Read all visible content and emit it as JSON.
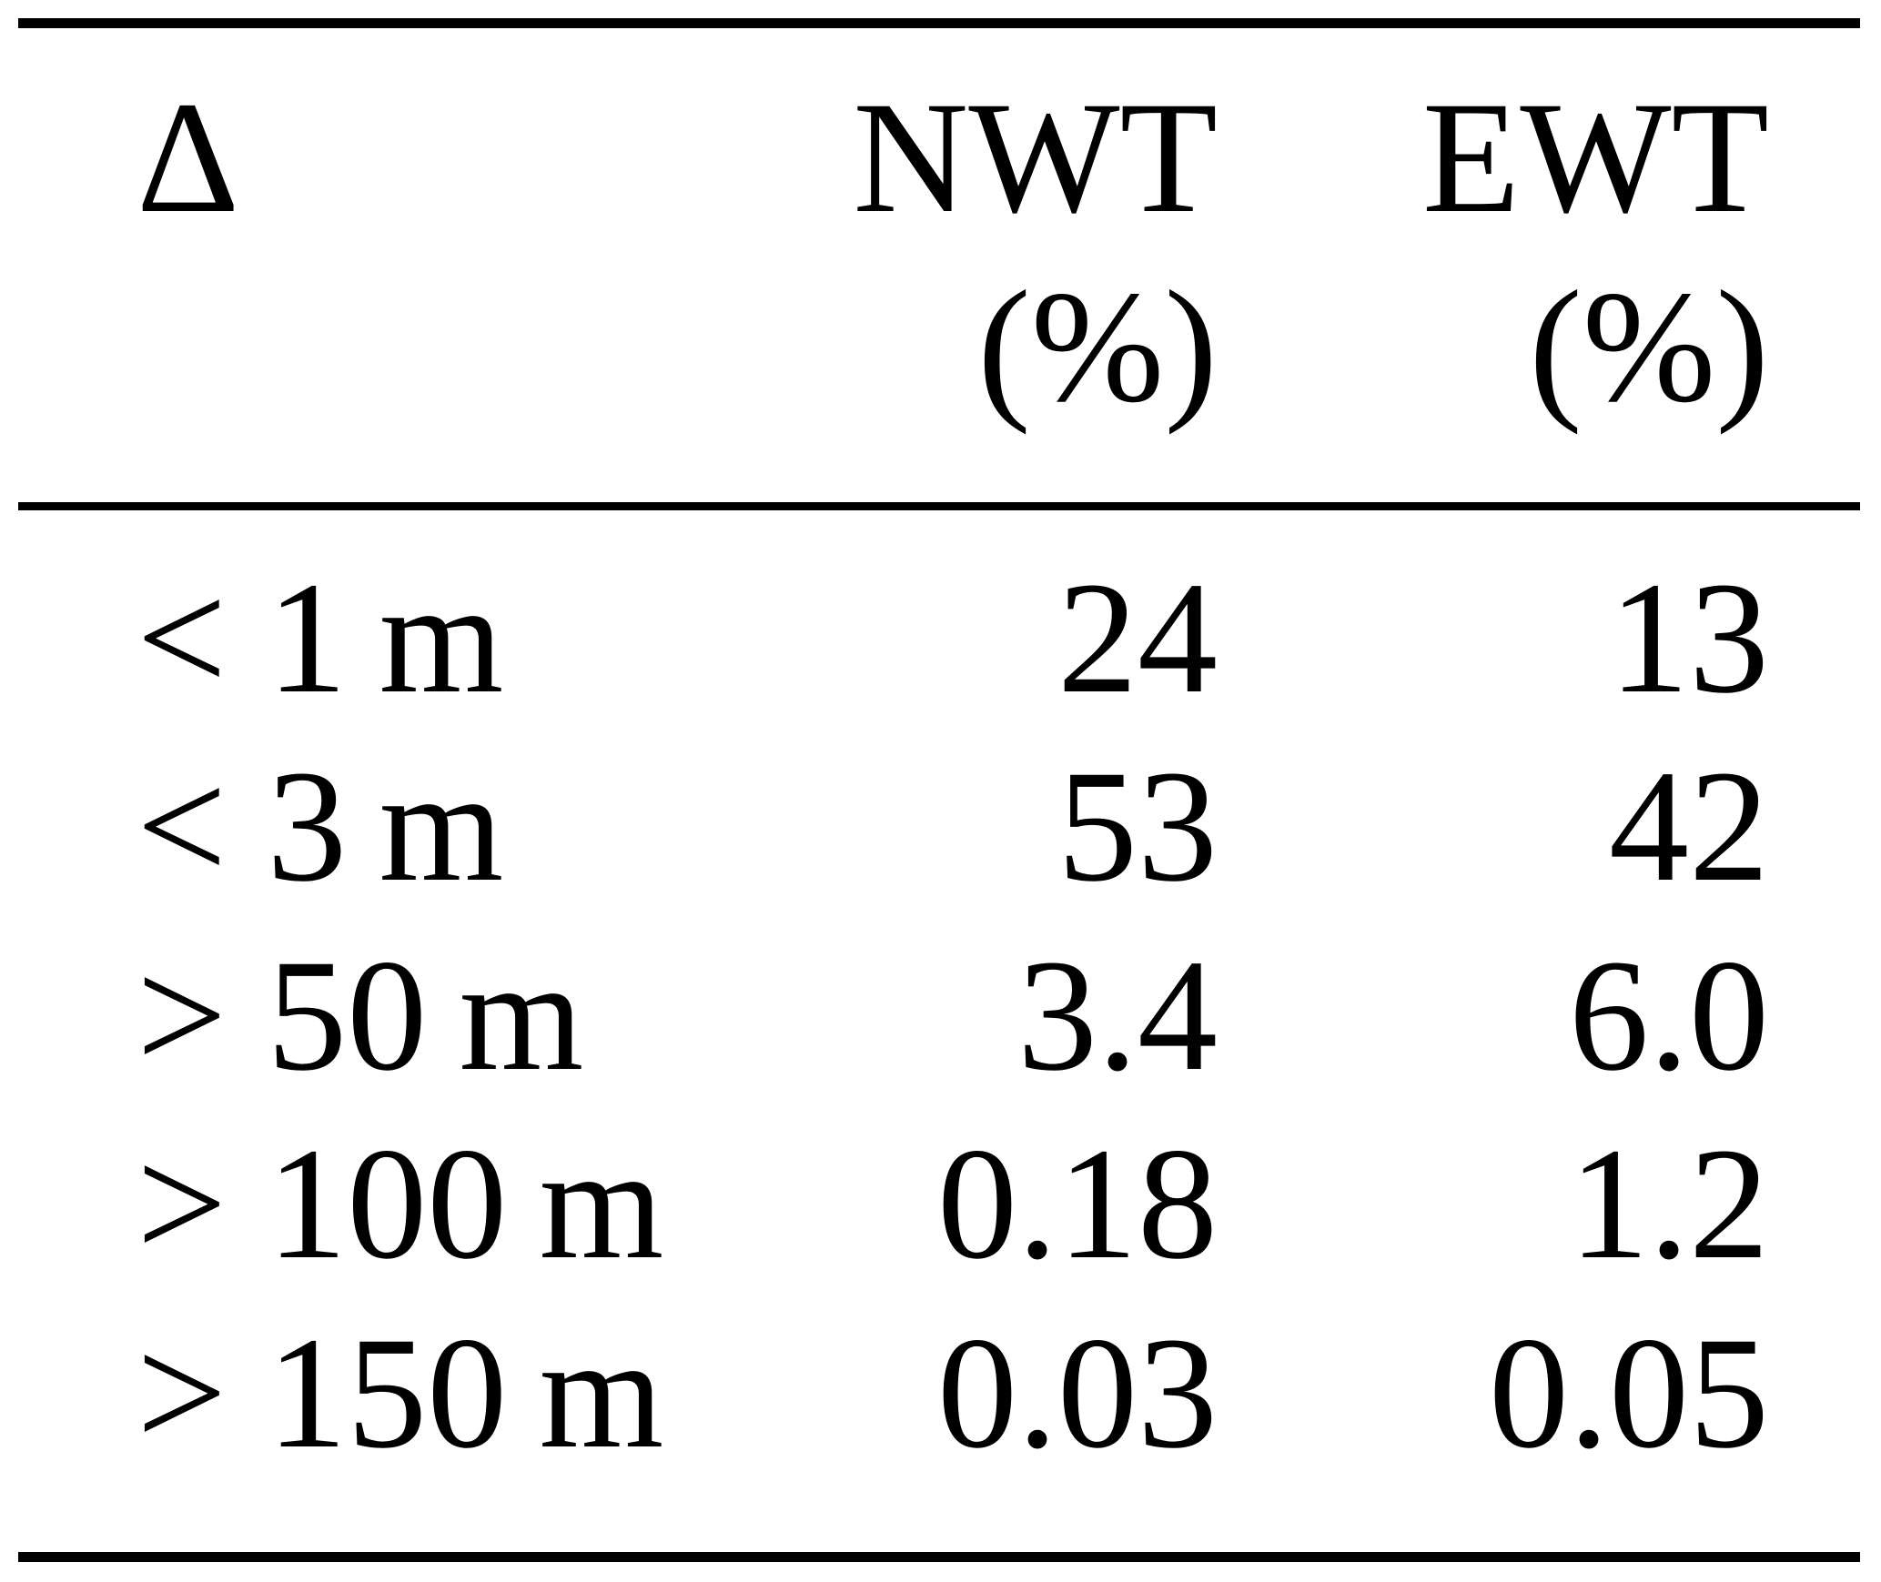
{
  "table": {
    "columns": [
      {
        "header": "Δ",
        "unit": ""
      },
      {
        "header": "NWT",
        "unit": "(%)"
      },
      {
        "header": "EWT",
        "unit": "(%)"
      }
    ],
    "rows": [
      {
        "delta": "< 1 m",
        "nwt": "24",
        "ewt": "13"
      },
      {
        "delta": "< 3 m",
        "nwt": "53",
        "ewt": "42"
      },
      {
        "delta": "> 50 m",
        "nwt": "3.4",
        "ewt": "6.0"
      },
      {
        "delta": "> 100 m",
        "nwt": "0.18",
        "ewt": "1.2"
      },
      {
        "delta": "> 150 m",
        "nwt": "0.03",
        "ewt": "0.05"
      }
    ]
  },
  "colors": {
    "background": "#ffffff",
    "text": "#000000",
    "rule": "#000000"
  }
}
